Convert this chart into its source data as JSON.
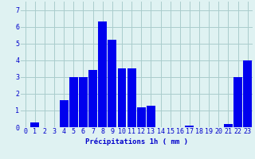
{
  "values": [
    0,
    0.3,
    0,
    0,
    1.6,
    3.0,
    3.0,
    3.4,
    6.3,
    5.2,
    3.5,
    3.5,
    1.2,
    1.3,
    0,
    0,
    0,
    0.1,
    0,
    0,
    0,
    0.2,
    3.0,
    4.0
  ],
  "xlabel": "Précipitations 1h ( mm )",
  "ylim": [
    0,
    7.5
  ],
  "yticks": [
    0,
    1,
    2,
    3,
    4,
    5,
    6,
    7
  ],
  "bar_color": "#0000ee",
  "background_color": "#dff2f2",
  "grid_color": "#aacccc",
  "text_color": "#0000cc",
  "xlabel_fontsize": 6.5,
  "tick_fontsize": 6.0
}
